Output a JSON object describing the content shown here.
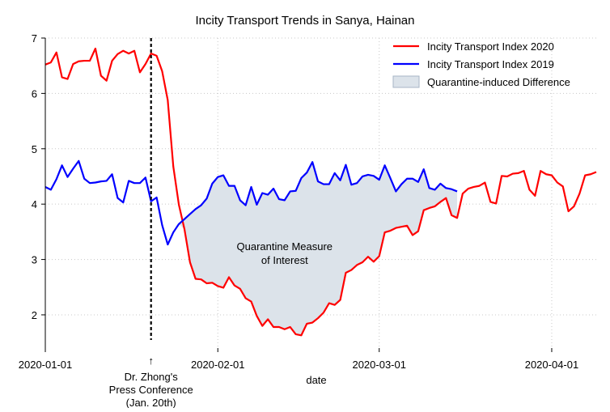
{
  "chart_data": {
    "type": "line",
    "title": "Incity Transport Trends in Sanya, Hainan",
    "xlabel": "date",
    "ylabel": "",
    "xlim": [
      "2020-01-01",
      "2020-04-09"
    ],
    "ylim": [
      1.4,
      7.0
    ],
    "y_ticks": [
      2,
      3,
      4,
      5,
      6,
      7
    ],
    "x_ticks": [
      {
        "date": "2020-01-01",
        "label": "2020-01-01"
      },
      {
        "date": "2020-02-01",
        "label": "2020-02-01"
      },
      {
        "date": "2020-03-01",
        "label": "2020-03-01"
      },
      {
        "date": "2020-04-01",
        "label": "2020-04-01"
      }
    ],
    "grid": {
      "x": true,
      "y": true,
      "style": "dotted"
    },
    "legend_position": "top-right",
    "annotation_date": "2020-01-20",
    "annotation_label": [
      "Dr. Zhong's",
      "Press Conference",
      "(Jan. 20th)"
    ],
    "annotation_arrow": "↑",
    "shaded_label": [
      "Quarantine Measure",
      "of Interest"
    ],
    "shaded_label_anchor": {
      "date": "2020-02-13",
      "value": 3.17
    },
    "series": [
      {
        "name": "Incity Transport Index 2020",
        "color": "#ff0000",
        "start_date": "2020-01-01",
        "values": [
          6.52,
          6.56,
          6.74,
          6.29,
          6.26,
          6.53,
          6.58,
          6.59,
          6.59,
          6.81,
          6.32,
          6.23,
          6.59,
          6.71,
          6.77,
          6.72,
          6.77,
          6.38,
          6.53,
          6.72,
          6.68,
          6.4,
          5.88,
          4.68,
          3.99,
          3.55,
          2.95,
          2.65,
          2.64,
          2.57,
          2.58,
          2.52,
          2.49,
          2.68,
          2.53,
          2.47,
          2.3,
          2.24,
          1.98,
          1.8,
          1.92,
          1.78,
          1.78,
          1.74,
          1.78,
          1.65,
          1.63,
          1.84,
          1.86,
          1.94,
          2.04,
          2.21,
          2.18,
          2.27,
          2.76,
          2.81,
          2.9,
          2.95,
          3.05,
          2.96,
          3.06,
          3.49,
          3.52,
          3.57,
          3.59,
          3.61,
          3.44,
          3.51,
          3.89,
          3.93,
          3.96,
          4.04,
          4.11,
          3.8,
          3.75,
          4.19,
          4.28,
          4.31,
          4.33,
          4.39,
          4.04,
          4.01,
          4.51,
          4.5,
          4.55,
          4.56,
          4.6,
          4.26,
          4.15,
          4.6,
          4.54,
          4.52,
          4.39,
          4.32,
          3.87,
          3.96,
          4.19,
          4.52,
          4.54,
          4.58
        ]
      },
      {
        "name": "Incity Transport Index 2019",
        "color": "#0000ff",
        "start_date": "2020-01-01",
        "values": [
          4.31,
          4.26,
          4.45,
          4.7,
          4.49,
          4.64,
          4.78,
          4.46,
          4.38,
          4.39,
          4.41,
          4.42,
          4.54,
          4.11,
          4.03,
          4.42,
          4.38,
          4.38,
          4.48,
          4.05,
          4.12,
          3.62,
          3.27,
          3.49,
          3.64,
          3.73,
          3.82,
          3.91,
          3.98,
          4.1,
          4.37,
          4.49,
          4.52,
          4.33,
          4.33,
          4.07,
          3.98,
          4.31,
          3.99,
          4.2,
          4.17,
          4.28,
          4.09,
          4.07,
          4.23,
          4.24,
          4.47,
          4.57,
          4.76,
          4.41,
          4.36,
          4.36,
          4.56,
          4.43,
          4.71,
          4.35,
          4.38,
          4.5,
          4.53,
          4.51,
          4.44,
          4.7,
          4.47,
          4.23,
          4.36,
          4.46,
          4.46,
          4.4,
          4.63,
          4.29,
          4.26,
          4.37,
          4.29,
          4.27,
          4.23
        ]
      }
    ],
    "legend": [
      {
        "label": "Incity Transport Index 2020",
        "color": "#ff0000",
        "kind": "line"
      },
      {
        "label": "Incity Transport Index 2019",
        "color": "#0000ff",
        "kind": "line"
      },
      {
        "label": "Quarantine-induced Difference",
        "color": "#dce3ea",
        "edge": "#a7b6c6",
        "kind": "box"
      }
    ],
    "fill_color": "#dce3ea"
  }
}
